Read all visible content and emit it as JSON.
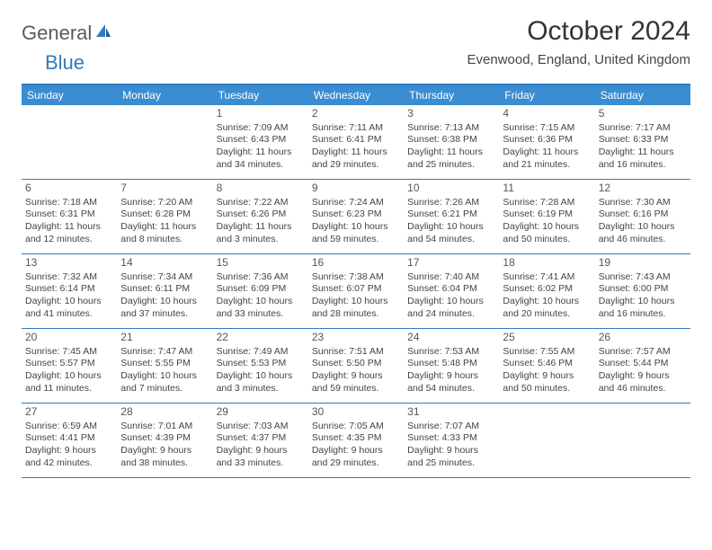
{
  "logo": {
    "text1": "General",
    "text2": "Blue"
  },
  "title": "October 2024",
  "location": "Evenwood, England, United Kingdom",
  "colors": {
    "header_bg": "#3a8dd0",
    "border": "#2f7bbf",
    "logo_gray": "#5a5a5a",
    "logo_blue": "#2f7bbf",
    "text": "#444444",
    "bg": "#ffffff"
  },
  "day_names": [
    "Sunday",
    "Monday",
    "Tuesday",
    "Wednesday",
    "Thursday",
    "Friday",
    "Saturday"
  ],
  "weeks": [
    [
      {
        "n": "",
        "l1": "",
        "l2": "",
        "l3": "",
        "l4": ""
      },
      {
        "n": "",
        "l1": "",
        "l2": "",
        "l3": "",
        "l4": ""
      },
      {
        "n": "1",
        "l1": "Sunrise: 7:09 AM",
        "l2": "Sunset: 6:43 PM",
        "l3": "Daylight: 11 hours",
        "l4": "and 34 minutes."
      },
      {
        "n": "2",
        "l1": "Sunrise: 7:11 AM",
        "l2": "Sunset: 6:41 PM",
        "l3": "Daylight: 11 hours",
        "l4": "and 29 minutes."
      },
      {
        "n": "3",
        "l1": "Sunrise: 7:13 AM",
        "l2": "Sunset: 6:38 PM",
        "l3": "Daylight: 11 hours",
        "l4": "and 25 minutes."
      },
      {
        "n": "4",
        "l1": "Sunrise: 7:15 AM",
        "l2": "Sunset: 6:36 PM",
        "l3": "Daylight: 11 hours",
        "l4": "and 21 minutes."
      },
      {
        "n": "5",
        "l1": "Sunrise: 7:17 AM",
        "l2": "Sunset: 6:33 PM",
        "l3": "Daylight: 11 hours",
        "l4": "and 16 minutes."
      }
    ],
    [
      {
        "n": "6",
        "l1": "Sunrise: 7:18 AM",
        "l2": "Sunset: 6:31 PM",
        "l3": "Daylight: 11 hours",
        "l4": "and 12 minutes."
      },
      {
        "n": "7",
        "l1": "Sunrise: 7:20 AM",
        "l2": "Sunset: 6:28 PM",
        "l3": "Daylight: 11 hours",
        "l4": "and 8 minutes."
      },
      {
        "n": "8",
        "l1": "Sunrise: 7:22 AM",
        "l2": "Sunset: 6:26 PM",
        "l3": "Daylight: 11 hours",
        "l4": "and 3 minutes."
      },
      {
        "n": "9",
        "l1": "Sunrise: 7:24 AM",
        "l2": "Sunset: 6:23 PM",
        "l3": "Daylight: 10 hours",
        "l4": "and 59 minutes."
      },
      {
        "n": "10",
        "l1": "Sunrise: 7:26 AM",
        "l2": "Sunset: 6:21 PM",
        "l3": "Daylight: 10 hours",
        "l4": "and 54 minutes."
      },
      {
        "n": "11",
        "l1": "Sunrise: 7:28 AM",
        "l2": "Sunset: 6:19 PM",
        "l3": "Daylight: 10 hours",
        "l4": "and 50 minutes."
      },
      {
        "n": "12",
        "l1": "Sunrise: 7:30 AM",
        "l2": "Sunset: 6:16 PM",
        "l3": "Daylight: 10 hours",
        "l4": "and 46 minutes."
      }
    ],
    [
      {
        "n": "13",
        "l1": "Sunrise: 7:32 AM",
        "l2": "Sunset: 6:14 PM",
        "l3": "Daylight: 10 hours",
        "l4": "and 41 minutes."
      },
      {
        "n": "14",
        "l1": "Sunrise: 7:34 AM",
        "l2": "Sunset: 6:11 PM",
        "l3": "Daylight: 10 hours",
        "l4": "and 37 minutes."
      },
      {
        "n": "15",
        "l1": "Sunrise: 7:36 AM",
        "l2": "Sunset: 6:09 PM",
        "l3": "Daylight: 10 hours",
        "l4": "and 33 minutes."
      },
      {
        "n": "16",
        "l1": "Sunrise: 7:38 AM",
        "l2": "Sunset: 6:07 PM",
        "l3": "Daylight: 10 hours",
        "l4": "and 28 minutes."
      },
      {
        "n": "17",
        "l1": "Sunrise: 7:40 AM",
        "l2": "Sunset: 6:04 PM",
        "l3": "Daylight: 10 hours",
        "l4": "and 24 minutes."
      },
      {
        "n": "18",
        "l1": "Sunrise: 7:41 AM",
        "l2": "Sunset: 6:02 PM",
        "l3": "Daylight: 10 hours",
        "l4": "and 20 minutes."
      },
      {
        "n": "19",
        "l1": "Sunrise: 7:43 AM",
        "l2": "Sunset: 6:00 PM",
        "l3": "Daylight: 10 hours",
        "l4": "and 16 minutes."
      }
    ],
    [
      {
        "n": "20",
        "l1": "Sunrise: 7:45 AM",
        "l2": "Sunset: 5:57 PM",
        "l3": "Daylight: 10 hours",
        "l4": "and 11 minutes."
      },
      {
        "n": "21",
        "l1": "Sunrise: 7:47 AM",
        "l2": "Sunset: 5:55 PM",
        "l3": "Daylight: 10 hours",
        "l4": "and 7 minutes."
      },
      {
        "n": "22",
        "l1": "Sunrise: 7:49 AM",
        "l2": "Sunset: 5:53 PM",
        "l3": "Daylight: 10 hours",
        "l4": "and 3 minutes."
      },
      {
        "n": "23",
        "l1": "Sunrise: 7:51 AM",
        "l2": "Sunset: 5:50 PM",
        "l3": "Daylight: 9 hours",
        "l4": "and 59 minutes."
      },
      {
        "n": "24",
        "l1": "Sunrise: 7:53 AM",
        "l2": "Sunset: 5:48 PM",
        "l3": "Daylight: 9 hours",
        "l4": "and 54 minutes."
      },
      {
        "n": "25",
        "l1": "Sunrise: 7:55 AM",
        "l2": "Sunset: 5:46 PM",
        "l3": "Daylight: 9 hours",
        "l4": "and 50 minutes."
      },
      {
        "n": "26",
        "l1": "Sunrise: 7:57 AM",
        "l2": "Sunset: 5:44 PM",
        "l3": "Daylight: 9 hours",
        "l4": "and 46 minutes."
      }
    ],
    [
      {
        "n": "27",
        "l1": "Sunrise: 6:59 AM",
        "l2": "Sunset: 4:41 PM",
        "l3": "Daylight: 9 hours",
        "l4": "and 42 minutes."
      },
      {
        "n": "28",
        "l1": "Sunrise: 7:01 AM",
        "l2": "Sunset: 4:39 PM",
        "l3": "Daylight: 9 hours",
        "l4": "and 38 minutes."
      },
      {
        "n": "29",
        "l1": "Sunrise: 7:03 AM",
        "l2": "Sunset: 4:37 PM",
        "l3": "Daylight: 9 hours",
        "l4": "and 33 minutes."
      },
      {
        "n": "30",
        "l1": "Sunrise: 7:05 AM",
        "l2": "Sunset: 4:35 PM",
        "l3": "Daylight: 9 hours",
        "l4": "and 29 minutes."
      },
      {
        "n": "31",
        "l1": "Sunrise: 7:07 AM",
        "l2": "Sunset: 4:33 PM",
        "l3": "Daylight: 9 hours",
        "l4": "and 25 minutes."
      },
      {
        "n": "",
        "l1": "",
        "l2": "",
        "l3": "",
        "l4": ""
      },
      {
        "n": "",
        "l1": "",
        "l2": "",
        "l3": "",
        "l4": ""
      }
    ]
  ]
}
